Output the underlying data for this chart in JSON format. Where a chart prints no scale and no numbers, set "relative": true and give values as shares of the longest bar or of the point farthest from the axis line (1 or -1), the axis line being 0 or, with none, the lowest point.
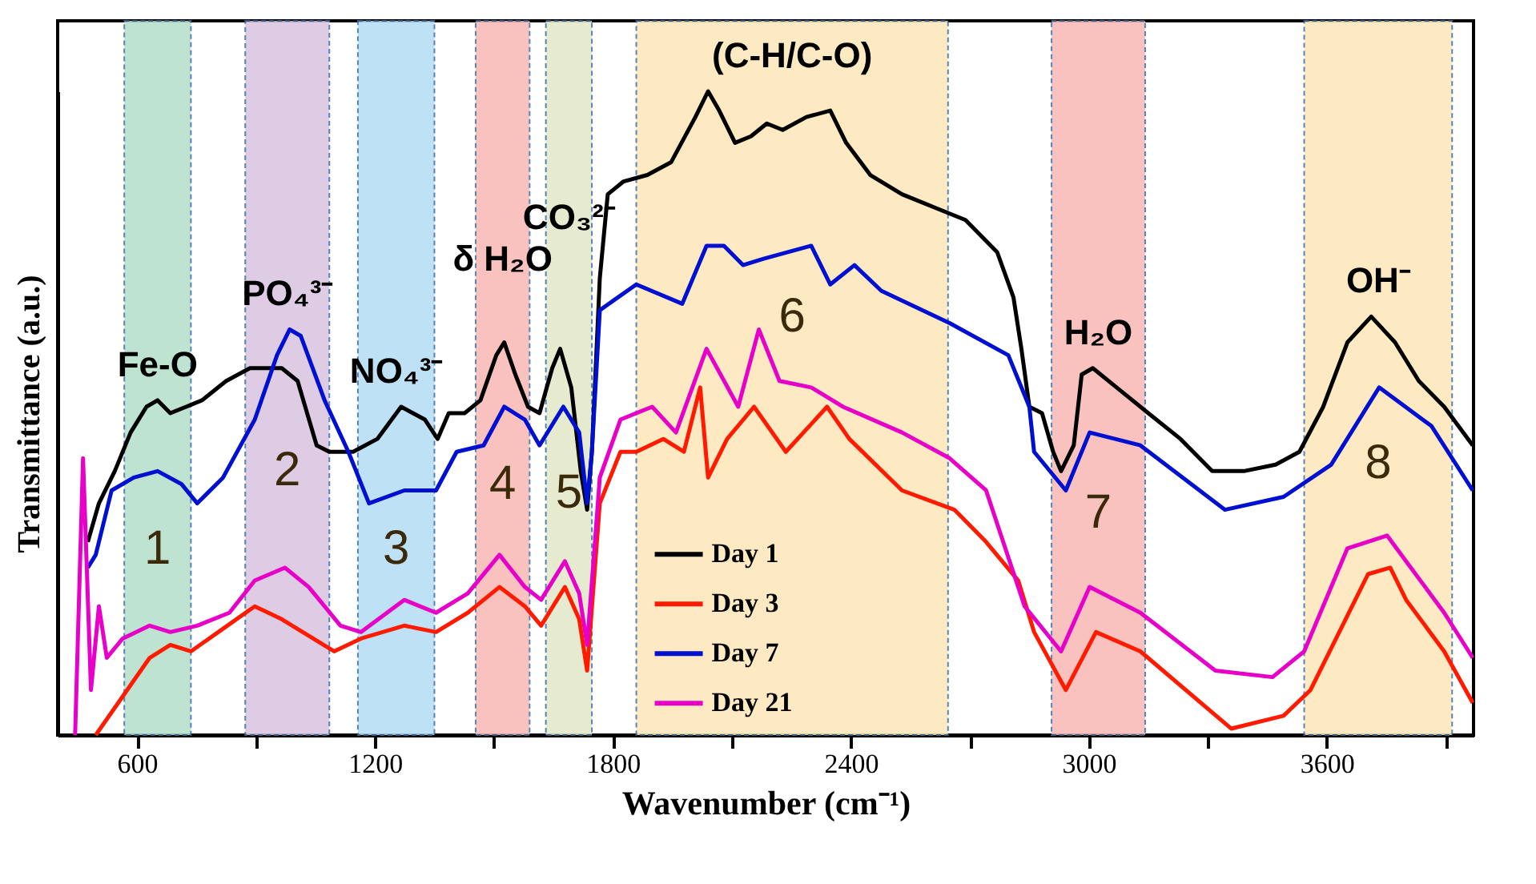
{
  "chart_data": {
    "type": "line",
    "relative": true,
    "xlabel": "Wavenumber (cm⁻¹)",
    "ylabel": "Transmittance (a.u.)",
    "xlim": [
      400,
      3970
    ],
    "xticks": [
      600,
      {
        "value": 900,
        "label": null
      },
      1200,
      {
        "value": 1500,
        "label": null
      },
      1800,
      {
        "value": 2100,
        "label": null
      },
      2400,
      {
        "value": 2700,
        "label": null
      },
      3000,
      {
        "value": 3300,
        "label": null
      },
      3600,
      {
        "value": 3900,
        "label": null
      }
    ],
    "tick_labels": "x",
    "legend": "bottom",
    "line_style": "solid",
    "series": [
      {
        "name": "Day 1",
        "color": "#000000",
        "x": [
          476,
          504,
          544,
          584,
          624,
          652,
          684,
          724,
          764,
          825,
          885,
          925,
          965,
          1005,
          1053,
          1085,
          1145,
          1206,
          1266,
          1326,
          1358,
          1386,
          1426,
          1466,
          1506,
          1526,
          1554,
          1586,
          1615,
          1647,
          1667,
          1695,
          1719,
          1735,
          1747,
          1767,
          1787,
          1827,
          1887,
          1947,
          2008,
          2040,
          2068,
          2108,
          2148,
          2188,
          2228,
          2288,
          2348,
          2388,
          2449,
          2529,
          2609,
          2689,
          2769,
          2810,
          2830,
          2850,
          2882,
          2910,
          2930,
          2962,
          2982,
          3010,
          3070,
          3150,
          3231,
          3311,
          3391,
          3471,
          3531,
          3591,
          3652,
          3712,
          3772,
          3832,
          3896,
          3968
        ],
        "values": [
          0.3,
          0.36,
          0.41,
          0.47,
          0.51,
          0.52,
          0.5,
          0.51,
          0.52,
          0.55,
          0.57,
          0.57,
          0.57,
          0.55,
          0.45,
          0.44,
          0.44,
          0.46,
          0.51,
          0.49,
          0.46,
          0.5,
          0.5,
          0.52,
          0.59,
          0.61,
          0.56,
          0.51,
          0.5,
          0.57,
          0.6,
          0.54,
          0.41,
          0.35,
          0.44,
          0.71,
          0.84,
          0.86,
          0.87,
          0.89,
          0.96,
          1.0,
          0.97,
          0.92,
          0.93,
          0.95,
          0.94,
          0.96,
          0.97,
          0.92,
          0.87,
          0.84,
          0.82,
          0.8,
          0.75,
          0.68,
          0.6,
          0.51,
          0.5,
          0.44,
          0.41,
          0.45,
          0.56,
          0.57,
          0.54,
          0.5,
          0.46,
          0.41,
          0.41,
          0.42,
          0.44,
          0.51,
          0.61,
          0.65,
          0.61,
          0.55,
          0.51,
          0.45
        ]
      },
      {
        "name": "Day 3",
        "color": "#ff1a00",
        "x": [
          496,
          564,
          632,
          684,
          736,
          805,
          897,
          965,
          1097,
          1165,
          1274,
          1354,
          1434,
          1514,
          1578,
          1619,
          1679,
          1715,
          1735,
          1767,
          1819,
          1859,
          1927,
          1979,
          2020,
          2040,
          2088,
          2156,
          2236,
          2340,
          2396,
          2529,
          2661,
          2741,
          2822,
          2862,
          2942,
          3018,
          3130,
          3359,
          3491,
          3559,
          3704,
          3760,
          3800,
          3896,
          3968
        ],
        "values": [
          0,
          0.06,
          0.12,
          0.14,
          0.13,
          0.16,
          0.2,
          0.18,
          0.13,
          0.15,
          0.17,
          0.16,
          0.19,
          0.23,
          0.2,
          0.17,
          0.23,
          0.18,
          0.1,
          0.36,
          0.44,
          0.44,
          0.46,
          0.44,
          0.54,
          0.4,
          0.46,
          0.51,
          0.44,
          0.51,
          0.46,
          0.38,
          0.35,
          0.3,
          0.24,
          0.16,
          0.07,
          0.16,
          0.13,
          0.01,
          0.03,
          0.07,
          0.25,
          0.26,
          0.21,
          0.13,
          0.05
        ]
      },
      {
        "name": "Day 7",
        "color": "#0010d0",
        "x": [
          476,
          496,
          536,
          592,
          652,
          712,
          752,
          817,
          897,
          953,
          985,
          1013,
          1073,
          1133,
          1185,
          1274,
          1354,
          1406,
          1474,
          1526,
          1578,
          1615,
          1675,
          1715,
          1735,
          1747,
          1767,
          1859,
          1975,
          2036,
          2080,
          2128,
          2180,
          2300,
          2348,
          2409,
          2477,
          2649,
          2797,
          2850,
          2862,
          2942,
          3002,
          3130,
          3343,
          3491,
          3611,
          3732,
          3864,
          3968
        ],
        "values": [
          0.26,
          0.28,
          0.38,
          0.4,
          0.41,
          0.39,
          0.36,
          0.4,
          0.49,
          0.59,
          0.63,
          0.62,
          0.52,
          0.44,
          0.36,
          0.38,
          0.38,
          0.44,
          0.45,
          0.51,
          0.49,
          0.45,
          0.51,
          0.47,
          0.36,
          0.44,
          0.66,
          0.7,
          0.67,
          0.76,
          0.76,
          0.73,
          0.74,
          0.76,
          0.7,
          0.73,
          0.69,
          0.64,
          0.59,
          0.51,
          0.44,
          0.38,
          0.47,
          0.45,
          0.35,
          0.37,
          0.42,
          0.54,
          0.48,
          0.38
        ]
      },
      {
        "name": "Day 21",
        "color": "#e600c8",
        "x": [
          444,
          464,
          484,
          504,
          524,
          564,
          632,
          684,
          752,
          833,
          897,
          973,
          1033,
          1113,
          1165,
          1274,
          1354,
          1434,
          1514,
          1578,
          1619,
          1679,
          1715,
          1735,
          1767,
          1819,
          1899,
          1959,
          2036,
          2116,
          2168,
          2220,
          2300,
          2380,
          2529,
          2649,
          2741,
          2838,
          2930,
          3002,
          3130,
          3319,
          3463,
          3543,
          3652,
          3752,
          3800,
          3896,
          3968
        ],
        "values": [
          0,
          0.43,
          0.07,
          0.2,
          0.12,
          0.15,
          0.17,
          0.16,
          0.17,
          0.19,
          0.24,
          0.26,
          0.23,
          0.17,
          0.16,
          0.21,
          0.19,
          0.22,
          0.28,
          0.23,
          0.21,
          0.27,
          0.22,
          0.14,
          0.4,
          0.49,
          0.51,
          0.47,
          0.6,
          0.51,
          0.63,
          0.55,
          0.54,
          0.51,
          0.47,
          0.43,
          0.38,
          0.2,
          0.13,
          0.23,
          0.19,
          0.1,
          0.09,
          0.13,
          0.29,
          0.31,
          0.27,
          0.19,
          0.12
        ]
      }
    ],
    "bands": [
      {
        "axis": "x",
        "from": 568,
        "to": 736,
        "label": "1",
        "color": "#b5dfca"
      },
      {
        "axis": "x",
        "from": 873,
        "to": 1085,
        "label": "2",
        "color": "#d9c3e0"
      },
      {
        "axis": "x",
        "from": 1157,
        "to": 1350,
        "label": "3",
        "color": "#b3dcf5"
      },
      {
        "axis": "x",
        "from": 1454,
        "to": 1590,
        "label": "4",
        "color": "#f9b8b4"
      },
      {
        "axis": "x",
        "from": 1631,
        "to": 1747,
        "label": "5",
        "color": "#e2e8c8"
      },
      {
        "axis": "x",
        "from": 1859,
        "to": 2645,
        "label": "6",
        "color": "#fde6b8"
      },
      {
        "axis": "x",
        "from": 2906,
        "to": 3142,
        "label": "7",
        "color": "#f9b8b4"
      },
      {
        "axis": "x",
        "from": 3543,
        "to": 3916,
        "label": "8",
        "color": "#fde6b8"
      }
    ],
    "annotations": [
      "Fe-O",
      "PO₄³⁻",
      "NO₄³⁻",
      "δ H₂O",
      "CO₃²⁻",
      "(C-H/C-O)",
      "H₂O",
      "OH⁻"
    ]
  }
}
